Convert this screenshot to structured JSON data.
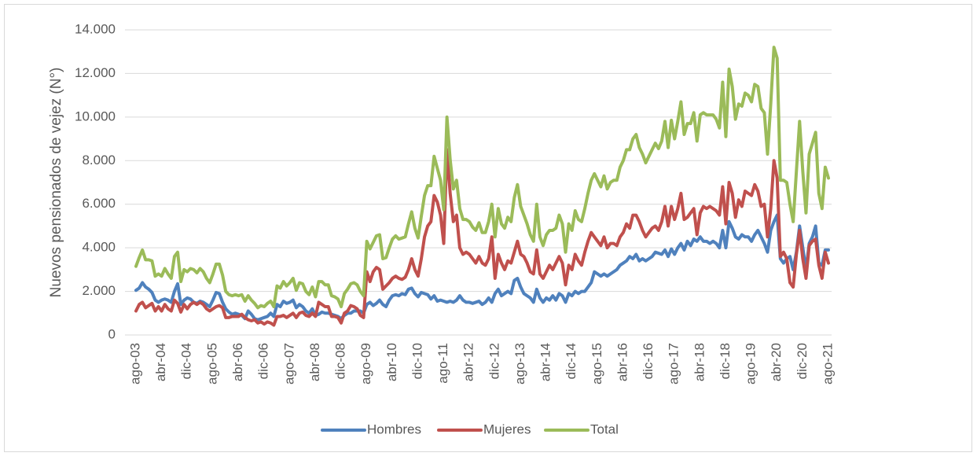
{
  "chart_data": {
    "type": "line",
    "y_label": "Nuevos pensionados de vejez (N°)",
    "categories": [
      "ago-03",
      null,
      null,
      null,
      null,
      null,
      null,
      null,
      "abr-04",
      null,
      null,
      null,
      null,
      null,
      null,
      null,
      "dic-04",
      null,
      null,
      null,
      null,
      null,
      null,
      null,
      "ago-05",
      null,
      null,
      null,
      null,
      null,
      null,
      null,
      "abr-06",
      null,
      null,
      null,
      null,
      null,
      null,
      null,
      "dic-06",
      null,
      null,
      null,
      null,
      null,
      null,
      null,
      "ago-07",
      null,
      null,
      null,
      null,
      null,
      null,
      null,
      "abr-08",
      null,
      null,
      null,
      null,
      null,
      null,
      null,
      "dic-08",
      null,
      null,
      null,
      null,
      null,
      null,
      null,
      "ago-09",
      null,
      null,
      null,
      null,
      null,
      null,
      null,
      "abr-10",
      null,
      null,
      null,
      null,
      null,
      null,
      null,
      "dic-10",
      null,
      null,
      null,
      null,
      null,
      null,
      null,
      "ago-11",
      null,
      null,
      null,
      null,
      null,
      null,
      null,
      "abr-12",
      null,
      null,
      null,
      null,
      null,
      null,
      null,
      "dic-12",
      null,
      null,
      null,
      null,
      null,
      null,
      null,
      "ago-13",
      null,
      null,
      null,
      null,
      null,
      null,
      null,
      "abr-14",
      null,
      null,
      null,
      null,
      null,
      null,
      null,
      "dic-14",
      null,
      null,
      null,
      null,
      null,
      null,
      null,
      "ago-15",
      null,
      null,
      null,
      null,
      null,
      null,
      null,
      "abr-16",
      null,
      null,
      null,
      null,
      null,
      null,
      null,
      "dic-16",
      null,
      null,
      null,
      null,
      null,
      null,
      null,
      "ago-17",
      null,
      null,
      null,
      null,
      null,
      null,
      null,
      "abr-18",
      null,
      null,
      null,
      null,
      null,
      null,
      null,
      "dic-18",
      null,
      null,
      null,
      null,
      null,
      null,
      null,
      "ago-19",
      null,
      null,
      null,
      null,
      null,
      null,
      null,
      "abr-20",
      null,
      null,
      null,
      null,
      null,
      null,
      null,
      "dic-20",
      null,
      null,
      null,
      null,
      null,
      null,
      null,
      "ago-21"
    ],
    "series": [
      {
        "name": "Hombres",
        "color": "#4f81bd",
        "values": [
          2050,
          2150,
          2400,
          2200,
          2100,
          1950,
          1600,
          1500,
          1600,
          1650,
          1600,
          1500,
          2000,
          2350,
          1400,
          1600,
          1700,
          1650,
          1500,
          1450,
          1550,
          1500,
          1400,
          1300,
          1600,
          1950,
          1900,
          1500,
          1200,
          1050,
          950,
          1000,
          950,
          900,
          750,
          1100,
          950,
          750,
          700,
          750,
          800,
          850,
          1000,
          850,
          1400,
          1300,
          1550,
          1450,
          1500,
          1600,
          1250,
          1400,
          1300,
          1100,
          1000,
          1200,
          900,
          950,
          1050,
          1000,
          1000,
          950,
          900,
          850,
          750,
          900,
          1000,
          1000,
          1100,
          1100,
          1100,
          1000,
          1400,
          1500,
          1350,
          1450,
          1600,
          1400,
          1300,
          1600,
          1800,
          1850,
          1800,
          1900,
          1850,
          2100,
          2150,
          1900,
          1750,
          1950,
          1900,
          1850,
          1650,
          1800,
          1550,
          1600,
          1550,
          1500,
          1550,
          1500,
          1600,
          1800,
          1600,
          1500,
          1500,
          1450,
          1500,
          1550,
          1400,
          1500,
          1700,
          1500,
          1900,
          2100,
          1800,
          1900,
          2000,
          1900,
          2500,
          2600,
          2200,
          1900,
          1800,
          1700,
          1500,
          2100,
          1700,
          1500,
          1700,
          1600,
          1800,
          1600,
          1900,
          1800,
          1500,
          1900,
          1800,
          2000,
          1900,
          2000,
          2000,
          2200,
          2400,
          2900,
          2800,
          2700,
          2800,
          2700,
          2800,
          2900,
          3000,
          3200,
          3300,
          3400,
          3600,
          3500,
          3700,
          3400,
          3500,
          3400,
          3500,
          3600,
          3800,
          3750,
          3700,
          3900,
          3600,
          3950,
          3700,
          4000,
          4200,
          3900,
          4300,
          4100,
          4400,
          4300,
          4500,
          4300,
          4300,
          4200,
          4300,
          4200,
          4000,
          4800,
          4000,
          5200,
          4900,
          4500,
          4400,
          4600,
          4500,
          4500,
          4300,
          4600,
          4800,
          4500,
          4200,
          3800,
          4800,
          5200,
          5500,
          3500,
          3300,
          3500,
          3600,
          3000,
          3800,
          5000,
          4000,
          3000,
          4200,
          4500,
          5000,
          3300,
          3200,
          3900,
          3900
        ]
      },
      {
        "name": "Mujeres",
        "color": "#c0504d",
        "values": [
          1100,
          1400,
          1500,
          1250,
          1350,
          1450,
          1100,
          1300,
          1100,
          1400,
          1200,
          1100,
          1600,
          1450,
          1050,
          1400,
          1200,
          1400,
          1500,
          1400,
          1500,
          1400,
          1200,
          1100,
          1200,
          1300,
          1350,
          1250,
          800,
          800,
          850,
          850,
          850,
          950,
          800,
          700,
          650,
          700,
          550,
          600,
          500,
          600,
          550,
          450,
          850,
          850,
          900,
          800,
          900,
          1000,
          800,
          1000,
          1050,
          900,
          850,
          1000,
          850,
          1500,
          1400,
          1300,
          1300,
          850,
          850,
          800,
          550,
          1000,
          1100,
          1350,
          1300,
          1200,
          900,
          800,
          2900,
          2450,
          2900,
          3100,
          3000,
          2100,
          2250,
          2400,
          2600,
          2700,
          2600,
          2550,
          2650,
          3000,
          3500,
          3000,
          2700,
          3500,
          4500,
          5000,
          5200,
          6400,
          6100,
          5500,
          4200,
          8500,
          6500,
          5200,
          5500,
          4000,
          3700,
          3800,
          3700,
          3500,
          3300,
          3600,
          3300,
          3200,
          3500,
          4500,
          2600,
          3700,
          3300,
          3000,
          3400,
          3300,
          3800,
          4300,
          3700,
          3600,
          3300,
          2900,
          2800,
          3900,
          2800,
          2600,
          2900,
          3200,
          3000,
          3300,
          3600,
          3300,
          2300,
          3200,
          3000,
          3700,
          3400,
          3200,
          3800,
          4300,
          4700,
          4500,
          4300,
          4100,
          4500,
          4000,
          4200,
          4200,
          4100,
          4500,
          4700,
          5100,
          4900,
          5500,
          5500,
          5200,
          4800,
          4500,
          4700,
          4900,
          5000,
          4800,
          5200,
          5900,
          5000,
          5900,
          5300,
          5800,
          6500,
          5300,
          5400,
          5600,
          5800,
          4600,
          5600,
          5900,
          5800,
          5900,
          5800,
          5700,
          5500,
          6800,
          5100,
          7000,
          6500,
          5400,
          6200,
          5900,
          6600,
          6500,
          6400,
          6900,
          6600,
          5900,
          6000,
          4500,
          5800,
          8000,
          7200,
          3600,
          3800,
          3500,
          2400,
          2200,
          3700,
          4800,
          3500,
          2600,
          4100,
          4300,
          4400,
          3200,
          2600,
          3800,
          3300
        ]
      },
      {
        "name": "Total",
        "color": "#9bbb59",
        "values": [
          3150,
          3550,
          3900,
          3450,
          3450,
          3400,
          2700,
          2800,
          2700,
          3050,
          2800,
          2600,
          3600,
          3800,
          2450,
          3000,
          2900,
          3050,
          3000,
          2850,
          3050,
          2900,
          2600,
          2400,
          2800,
          3250,
          3250,
          2750,
          2000,
          1850,
          1800,
          1850,
          1800,
          1850,
          1550,
          1800,
          1600,
          1450,
          1250,
          1350,
          1300,
          1450,
          1550,
          1300,
          2250,
          2150,
          2450,
          2250,
          2400,
          2600,
          2050,
          2400,
          2350,
          2000,
          1850,
          2200,
          1750,
          2450,
          2450,
          2300,
          2300,
          1800,
          1750,
          1650,
          1300,
          1900,
          2100,
          2350,
          2400,
          2300,
          2000,
          1800,
          4300,
          3950,
          4250,
          4550,
          4600,
          3500,
          3550,
          4000,
          4400,
          4550,
          4400,
          4450,
          4500,
          5100,
          5650,
          4900,
          4450,
          5450,
          6400,
          6850,
          6850,
          8200,
          7650,
          7100,
          5750,
          10000,
          8050,
          6700,
          7100,
          5800,
          5300,
          5300,
          5200,
          4950,
          4800,
          5150,
          4700,
          4700,
          5200,
          6000,
          4500,
          5800,
          5100,
          4900,
          5400,
          5200,
          6300,
          6900,
          5900,
          5500,
          5100,
          4600,
          4300,
          6000,
          4500,
          4100,
          4600,
          4800,
          4800,
          4900,
          5500,
          5100,
          3800,
          5100,
          4800,
          5700,
          5300,
          5200,
          5800,
          6500,
          7100,
          7400,
          7100,
          6800,
          7300,
          6700,
          7000,
          7100,
          7100,
          7700,
          8000,
          8500,
          8500,
          9000,
          9200,
          8600,
          8300,
          7900,
          8200,
          8500,
          8800,
          8550,
          8900,
          9800,
          8600,
          9850,
          9000,
          9800,
          10700,
          9200,
          9700,
          9700,
          10200,
          8900,
          10100,
          10200,
          10100,
          10100,
          10100,
          9900,
          9500,
          11600,
          9100,
          12200,
          11400,
          9900,
          10600,
          10500,
          11100,
          11000,
          10700,
          11500,
          11400,
          10400,
          10200,
          8300,
          10600,
          13200,
          12700,
          7100,
          7100,
          7000,
          6000,
          5200,
          7500,
          9800,
          7500,
          5600,
          8300,
          8800,
          9300,
          6500,
          5800,
          7700,
          7200
        ]
      }
    ],
    "ylim": [
      0,
      14000
    ],
    "yticks": [
      0,
      {
        "value": 2000,
        "label": "2.000"
      },
      {
        "value": 4000,
        "label": "4.000"
      },
      {
        "value": 6000,
        "label": "6.000"
      },
      {
        "value": 8000,
        "label": "8.000"
      },
      {
        "value": 10000,
        "label": "10.000"
      },
      {
        "value": 12000,
        "label": "12.000"
      },
      {
        "value": 14000,
        "label": "14.000"
      }
    ],
    "grid": true,
    "legend": "bottom"
  }
}
